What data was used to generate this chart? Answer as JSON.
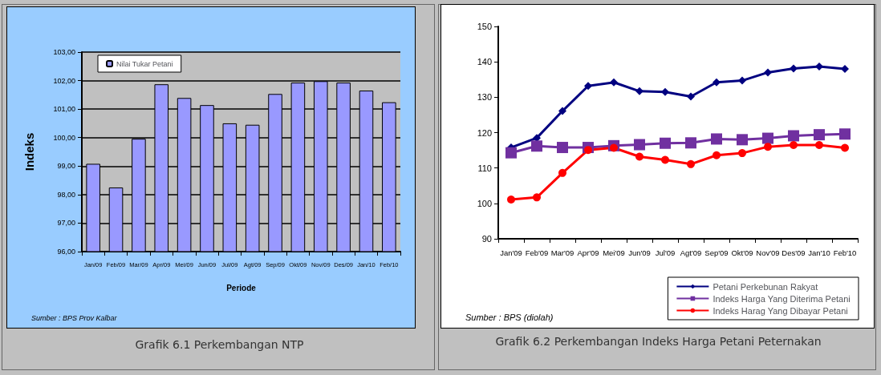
{
  "chart_data": [
    {
      "type": "bar",
      "title": "Grafik 6.1 Perkembangan NTP",
      "xlabel": "Periode",
      "ylabel": "Indeks",
      "annotations": [
        "Sumber : BPS Prov Kalbar"
      ],
      "categories": [
        "Jan/09",
        "Feb/09",
        "Mar/09",
        "Apr/09",
        "Mei/09",
        "Jun/09",
        "Jul/09",
        "Agt/09",
        "Sep/09",
        "Okt/09",
        "Nov/09",
        "Des/09",
        "Jan/10",
        "Feb/10"
      ],
      "series": [
        {
          "name": "Nilai Tukar Petani",
          "color": "#9999ff",
          "values": [
            99.08,
            98.25,
            99.96,
            101.87,
            101.39,
            101.14,
            100.5,
            100.45,
            101.53,
            101.93,
            101.98,
            101.93,
            101.65,
            101.24
          ]
        }
      ],
      "ylim": [
        96,
        103
      ],
      "yticks": [
        {
          "value": 96,
          "label": "96,00"
        },
        {
          "value": 97,
          "label": "97,00"
        },
        {
          "value": 98,
          "label": "98,00"
        },
        {
          "value": 99,
          "label": "99,00"
        },
        {
          "value": 100,
          "label": "100,00"
        },
        {
          "value": 101,
          "label": "101,00"
        },
        {
          "value": 102,
          "label": "102,00"
        },
        {
          "value": 103,
          "label": "103,00"
        }
      ],
      "grid": "y",
      "legend": "top left"
    },
    {
      "type": "line",
      "title": "Grafik 6.2 Perkembangan Indeks Harga Petani Peternakan",
      "annotations": [
        "Sumber : BPS (diolah)"
      ],
      "categories": [
        "Jan'09",
        "Feb'09",
        "Mar'09",
        "Apr'09",
        "Mei'09",
        "Jun'09",
        "Jul'09",
        "Agt'09",
        "Sep'09",
        "Okt'09",
        "Nov'09",
        "Des'09",
        "Jan'10",
        "Feb'10"
      ],
      "series": [
        {
          "name": "Petani Perkebunan Rakyat",
          "color": "#000080",
          "marker": "diamond",
          "values": [
            115.8,
            118.5,
            126.1,
            133.2,
            134.2,
            131.7,
            131.5,
            130.2,
            134.2,
            134.7,
            137.0,
            138.1,
            138.7,
            138.0
          ]
        },
        {
          "name": "Indeks Harga Yang Diterima Petani",
          "color": "#7030a0",
          "marker": "square",
          "values": [
            114.3,
            116.2,
            115.8,
            115.8,
            116.3,
            116.6,
            117.0,
            117.1,
            118.2,
            118.0,
            118.4,
            119.1,
            119.4,
            119.6
          ]
        },
        {
          "name": "Indeks Harag Yang Dibayar Petani",
          "color": "#ff0000",
          "marker": "circle",
          "values": [
            101.1,
            101.7,
            108.6,
            115.1,
            115.7,
            113.2,
            112.3,
            111.1,
            113.6,
            114.2,
            116.0,
            116.5,
            116.5,
            115.7
          ]
        }
      ],
      "ylim": [
        90,
        150
      ],
      "yticks": [
        90,
        100,
        110,
        120,
        130,
        140,
        150
      ],
      "legend": "bottom right"
    }
  ]
}
